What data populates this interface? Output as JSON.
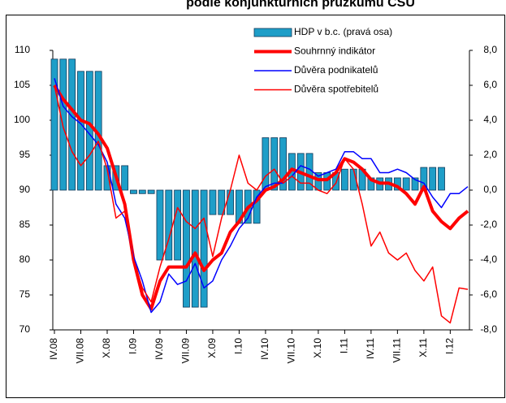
{
  "chart_data": {
    "type": "combo",
    "title": "podle konjunkturních průzkumů ČSÚ",
    "categories": [
      "IV.08",
      null,
      null,
      "VII.08",
      null,
      null,
      "X.08",
      null,
      null,
      "I.09",
      null,
      null,
      "IV.09",
      null,
      null,
      "VII.09",
      null,
      null,
      "X.09",
      null,
      null,
      "I.10",
      null,
      null,
      "IV.10",
      null,
      null,
      "VII.10",
      null,
      null,
      "X.10",
      null,
      null,
      "I.11",
      null,
      null,
      "IV.11",
      null,
      null,
      "VII.11",
      null,
      null,
      "X.11",
      null,
      null,
      "I.12",
      null,
      null
    ],
    "ylim": [
      70,
      110
    ],
    "yticks": [
      70,
      75,
      80,
      85,
      90,
      95,
      100,
      105,
      110
    ],
    "y2lim": [
      -8,
      8
    ],
    "y2ticks": [
      {
        "value": -8,
        "label": "-8,0"
      },
      {
        "value": -6,
        "label": "-6,0"
      },
      {
        "value": -4,
        "label": "-4,0"
      },
      {
        "value": -2,
        "label": "-2,0"
      },
      {
        "value": 0,
        "label": "0,0"
      },
      {
        "value": 2,
        "label": "2,0"
      },
      {
        "value": 4,
        "label": "4,0"
      },
      {
        "value": 6,
        "label": "6,0"
      },
      {
        "value": 8,
        "label": "8,0"
      }
    ],
    "grid": false,
    "series": [
      {
        "name": "HDP v b.c. (pravá osa)",
        "type": "bar",
        "axis": "y2",
        "color": "#1e9ec8",
        "values": [
          7.5,
          7.5,
          7.5,
          6.8,
          6.8,
          6.8,
          1.4,
          1.4,
          1.4,
          -0.2,
          -0.2,
          -0.2,
          -4.0,
          -4.0,
          -4.0,
          -6.7,
          -6.7,
          -6.7,
          -1.4,
          -1.4,
          -1.4,
          -1.9,
          -1.9,
          -1.9,
          3.0,
          3.0,
          3.0,
          2.1,
          2.1,
          2.1,
          1.0,
          1.0,
          1.0,
          1.2,
          1.2,
          1.2,
          0.7,
          0.7,
          0.7,
          0.7,
          0.7,
          0.7,
          1.3,
          1.3,
          1.3,
          null,
          null,
          null
        ]
      },
      {
        "name": "Souhrnný indikátor",
        "type": "line",
        "color": "#ff0000",
        "width": 4,
        "values": [
          105,
          103,
          101.5,
          100,
          99.5,
          98,
          96,
          92,
          88,
          80,
          75,
          73,
          77,
          79,
          79,
          79,
          81,
          78.5,
          80,
          81,
          84,
          85.5,
          87.5,
          88.5,
          90,
          90.5,
          91.5,
          93,
          92.5,
          92,
          91.5,
          91.5,
          92.5,
          94.5,
          94,
          93,
          91.5,
          91,
          91,
          90.5,
          89.5,
          88,
          90.5,
          87,
          85.5,
          84.5,
          86,
          87
        ]
      },
      {
        "name": "Důvěra podnikatelů",
        "type": "line",
        "color": "#0000ff",
        "width": 1.5,
        "values": [
          106,
          102,
          100.5,
          99.5,
          98,
          96.5,
          94,
          88,
          86,
          80.5,
          77,
          72.5,
          74,
          78,
          76.5,
          77,
          79.5,
          76,
          77,
          80,
          82,
          84.5,
          86,
          89,
          90.5,
          91,
          91,
          92,
          93.5,
          93,
          92,
          92.5,
          93,
          95.5,
          95.5,
          94.5,
          94.5,
          92.5,
          92.5,
          93,
          92.5,
          91.5,
          91,
          89,
          87.5,
          89.5,
          89.5,
          90.5
        ]
      },
      {
        "name": "Důvěra spotřebitelů",
        "type": "line",
        "color": "#ff0000",
        "width": 1.5,
        "values": [
          105,
          99,
          95.5,
          93.5,
          95,
          97,
          93,
          86,
          87,
          80,
          76,
          74,
          79,
          83,
          87.5,
          85.5,
          84.5,
          86,
          80.5,
          86,
          90,
          95,
          91,
          90,
          92,
          93,
          91,
          92,
          91,
          91,
          90,
          89.5,
          91,
          94.5,
          93,
          88,
          82,
          84,
          81,
          80,
          81,
          78.5,
          77,
          79,
          72,
          71,
          76,
          75.8
        ]
      }
    ]
  }
}
